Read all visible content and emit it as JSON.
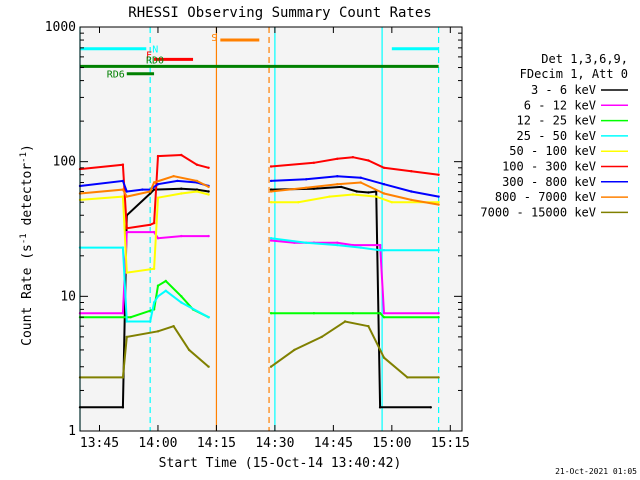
{
  "chart_data": {
    "type": "line",
    "title": "RHESSI Observing Summary Count Rates",
    "xlabel": "Start Time (15-Oct-14 13:40:42)",
    "ylabel": "Count Rate (s",
    "ylabel_sup": "-1",
    "ylabel_mid": " detector",
    "ylabel_end": ")",
    "x_unit": "minutes after 13:40",
    "xlim": [
      0,
      98
    ],
    "ylim": [
      1,
      1000
    ],
    "yscale": "log",
    "x_ticks": [
      {
        "x": 5,
        "label": "13:45"
      },
      {
        "x": 20,
        "label": "14:00"
      },
      {
        "x": 35,
        "label": "14:15"
      },
      {
        "x": 50,
        "label": "14:30"
      },
      {
        "x": 65,
        "label": "14:45"
      },
      {
        "x": 80,
        "label": "15:00"
      },
      {
        "x": 95,
        "label": "15:15"
      }
    ],
    "y_ticks": [
      {
        "y": 1,
        "label": "1"
      },
      {
        "y": 10,
        "label": "10"
      },
      {
        "y": 100,
        "label": "100"
      },
      {
        "y": 1000,
        "label": "1000"
      }
    ],
    "legend_header": [
      "Det 1,3,6,9,",
      "FDecim 1, Att 0"
    ],
    "series": [
      {
        "name": "3 - 6 keV",
        "color": "#000000",
        "segments": [
          [
            [
              0,
              1.5
            ],
            [
              11,
              1.5
            ],
            [
              12,
              40
            ],
            [
              18,
              58
            ],
            [
              19,
              62
            ],
            [
              26,
              63
            ],
            [
              30,
              62
            ],
            [
              33,
              60
            ]
          ],
          [
            [
              49,
              62
            ],
            [
              60,
              63
            ],
            [
              67,
              65
            ],
            [
              71,
              60
            ],
            [
              74,
              59
            ],
            [
              76,
              60
            ],
            [
              77,
              1.5
            ],
            [
              90,
              1.5
            ]
          ]
        ]
      },
      {
        "name": "6 - 12 keV",
        "color": "#ff00ff",
        "segments": [
          [
            [
              0,
              7.5
            ],
            [
              11,
              7.5
            ],
            [
              12,
              30
            ],
            [
              19,
              30
            ],
            [
              20,
              27
            ],
            [
              26,
              28
            ],
            [
              33,
              28
            ]
          ],
          [
            [
              49,
              26
            ],
            [
              55,
              25
            ],
            [
              60,
              25
            ],
            [
              66,
              25
            ],
            [
              70,
              24
            ],
            [
              77,
              24
            ],
            [
              78,
              7.5
            ],
            [
              92,
              7.5
            ]
          ]
        ]
      },
      {
        "name": "12 - 25 keV",
        "color": "#00ff00",
        "segments": [
          [
            [
              0,
              7
            ],
            [
              12,
              7
            ],
            [
              13,
              7
            ],
            [
              19,
              8
            ],
            [
              20,
              12
            ],
            [
              22,
              13
            ],
            [
              26,
              10
            ],
            [
              29,
              8
            ],
            [
              33,
              7
            ]
          ],
          [
            [
              49,
              7.5
            ],
            [
              60,
              7.5
            ],
            [
              70,
              7.5
            ],
            [
              77,
              7.5
            ],
            [
              78,
              7
            ],
            [
              92,
              7
            ]
          ]
        ]
      },
      {
        "name": "25 - 50 keV",
        "color": "#00ffff",
        "segments": [
          [
            [
              0,
              23
            ],
            [
              11,
              23
            ],
            [
              12,
              6.5
            ],
            [
              18,
              6.5
            ],
            [
              19,
              9
            ],
            [
              20,
              10
            ],
            [
              22,
              11
            ],
            [
              26,
              9
            ],
            [
              33,
              7
            ]
          ],
          [
            [
              49,
              27
            ],
            [
              58,
              25
            ],
            [
              66,
              24
            ],
            [
              72,
              23
            ],
            [
              77,
              22
            ],
            [
              78,
              22
            ],
            [
              92,
              22
            ]
          ]
        ]
      },
      {
        "name": "50 - 100 keV",
        "color": "#ffff00",
        "segments": [
          [
            [
              0,
              52
            ],
            [
              11,
              55
            ],
            [
              12,
              15
            ],
            [
              19,
              16
            ],
            [
              20,
              54
            ],
            [
              26,
              58
            ],
            [
              30,
              60
            ],
            [
              33,
              57
            ]
          ],
          [
            [
              49,
              50
            ],
            [
              56,
              50
            ],
            [
              64,
              55
            ],
            [
              70,
              57
            ],
            [
              76,
              55
            ],
            [
              80,
              50
            ],
            [
              92,
              50
            ]
          ]
        ]
      },
      {
        "name": "100 - 300 keV",
        "color": "#ff0000",
        "segments": [
          [
            [
              0,
              88
            ],
            [
              11,
              95
            ],
            [
              12,
              32
            ],
            [
              18,
              34
            ],
            [
              19,
              35
            ],
            [
              20,
              110
            ],
            [
              26,
              112
            ],
            [
              30,
              95
            ],
            [
              33,
              90
            ]
          ],
          [
            [
              49,
              92
            ],
            [
              60,
              98
            ],
            [
              66,
              105
            ],
            [
              70,
              108
            ],
            [
              74,
              102
            ],
            [
              78,
              90
            ],
            [
              85,
              85
            ],
            [
              92,
              80
            ]
          ]
        ]
      },
      {
        "name": "300 - 800 keV",
        "color": "#0000ff",
        "segments": [
          [
            [
              0,
              66
            ],
            [
              11,
              72
            ],
            [
              12,
              60
            ],
            [
              16,
              62
            ],
            [
              18,
              62
            ],
            [
              20,
              68
            ],
            [
              25,
              72
            ],
            [
              30,
              70
            ],
            [
              33,
              66
            ]
          ],
          [
            [
              49,
              72
            ],
            [
              58,
              74
            ],
            [
              66,
              78
            ],
            [
              72,
              76
            ],
            [
              78,
              68
            ],
            [
              85,
              60
            ],
            [
              92,
              55
            ]
          ]
        ]
      },
      {
        "name": "800 - 7000 keV",
        "color": "#ff8000",
        "segments": [
          [
            [
              0,
              58
            ],
            [
              11,
              62
            ],
            [
              12,
              55
            ],
            [
              18,
              60
            ],
            [
              19,
              70
            ],
            [
              24,
              78
            ],
            [
              30,
              72
            ],
            [
              33,
              65
            ]
          ],
          [
            [
              49,
              60
            ],
            [
              58,
              64
            ],
            [
              66,
              68
            ],
            [
              72,
              70
            ],
            [
              78,
              58
            ],
            [
              85,
              52
            ],
            [
              92,
              48
            ]
          ]
        ]
      },
      {
        "name": "7000 - 15000 keV",
        "color": "#808000",
        "segments": [
          [
            [
              0,
              2.5
            ],
            [
              11,
              2.5
            ],
            [
              12,
              5
            ],
            [
              20,
              5.5
            ],
            [
              24,
              6
            ],
            [
              28,
              4
            ],
            [
              33,
              3
            ]
          ],
          [
            [
              49,
              3
            ],
            [
              55,
              4
            ],
            [
              62,
              5
            ],
            [
              68,
              6.5
            ],
            [
              74,
              6
            ],
            [
              78,
              3.5
            ],
            [
              84,
              2.5
            ],
            [
              92,
              2.5
            ]
          ]
        ]
      }
    ],
    "state_bars": [
      {
        "label": "N",
        "color": "#00ffff",
        "segments": [
          [
            0,
            17
          ],
          [
            80,
            92
          ]
        ],
        "level": 690
      },
      {
        "label": "F",
        "color": "#ff0000",
        "segments": [
          [
            19,
            29
          ]
        ],
        "level": 575
      },
      {
        "label": "S",
        "color": "#ff8000",
        "segments": [
          [
            36,
            46
          ]
        ],
        "level": 800
      },
      {
        "label": "RD0",
        "color": "#008000",
        "segments": [
          [
            0,
            92
          ]
        ],
        "level": 510
      },
      {
        "label": "RD6",
        "color": "#008000",
        "segments": [
          [
            12,
            19
          ]
        ],
        "level": 450
      }
    ],
    "vertical_lines": [
      {
        "x": 0,
        "color": "#00ffff",
        "style": "solid"
      },
      {
        "x": 18,
        "color": "#00ffff",
        "style": "dashed"
      },
      {
        "x": 35,
        "color": "#ff8000",
        "style": "solid"
      },
      {
        "x": 48.5,
        "color": "#ff8000",
        "style": "dashed"
      },
      {
        "x": 50,
        "color": "#00ffff",
        "style": "solid"
      },
      {
        "x": 77.5,
        "color": "#00ffff",
        "style": "solid"
      },
      {
        "x": 92,
        "color": "#00ffff",
        "style": "dashed"
      }
    ],
    "timestamp": "21-Oct-2021 01:05"
  }
}
